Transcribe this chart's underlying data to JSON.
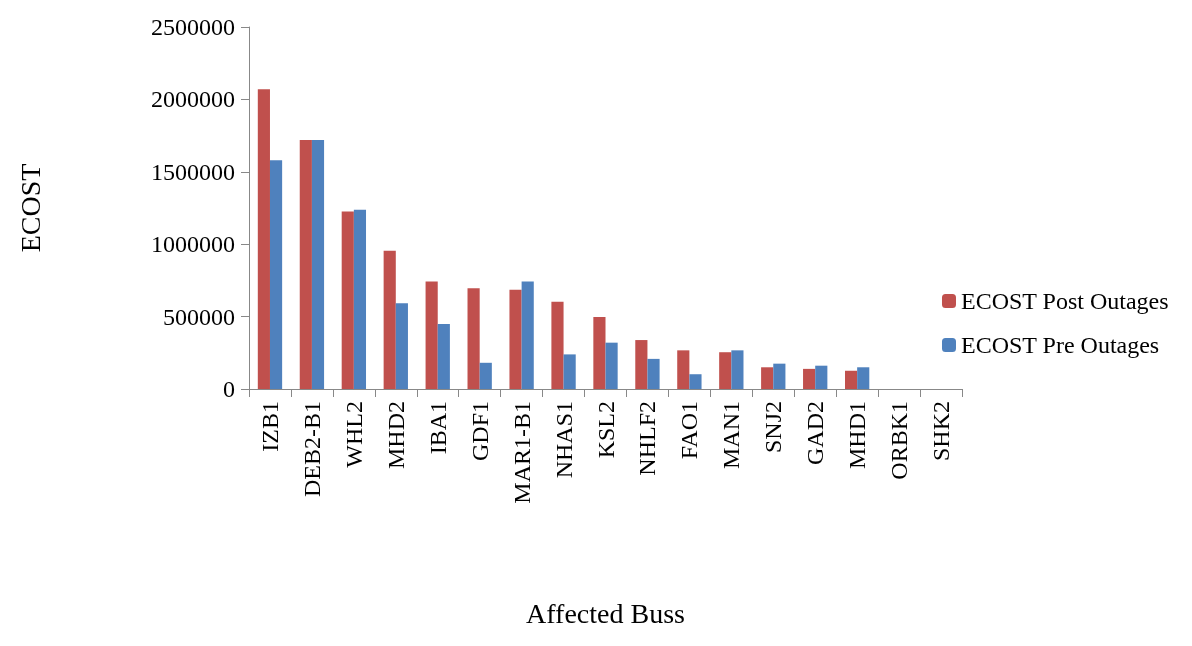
{
  "chart_data": {
    "type": "bar",
    "xlabel": "Affected Buss",
    "ylabel": "ECOST",
    "categories": [
      "IZB1",
      "DEB2-B1",
      "WHL2",
      "MHD2",
      "IBA1",
      "GDF1",
      "MAR1-B1",
      "NHAS1",
      "KSL2",
      "NHLF2",
      "FAO1",
      "MAN1",
      "SNJ2",
      "GAD2",
      "MHD1",
      "ORBK1",
      "SHK2"
    ],
    "series": [
      {
        "name": "ECOST Post Outages",
        "color": "#c0504d",
        "values": [
          2070000,
          1720000,
          1225000,
          955000,
          743000,
          696000,
          685000,
          603000,
          497000,
          338000,
          267000,
          254000,
          150000,
          139000,
          126000,
          0,
          0
        ]
      },
      {
        "name": "ECOST Pre Outages",
        "color": "#4f81bd",
        "values": [
          1580000,
          1720000,
          1238000,
          592000,
          449000,
          181000,
          743000,
          239000,
          320000,
          208000,
          102000,
          267000,
          175000,
          161000,
          150000,
          0,
          0
        ]
      }
    ],
    "ylim": [
      0,
      2500000
    ],
    "yticks": [
      0,
      500000,
      1000000,
      1500000,
      2000000,
      2500000
    ],
    "grid": false,
    "legend": "right"
  }
}
